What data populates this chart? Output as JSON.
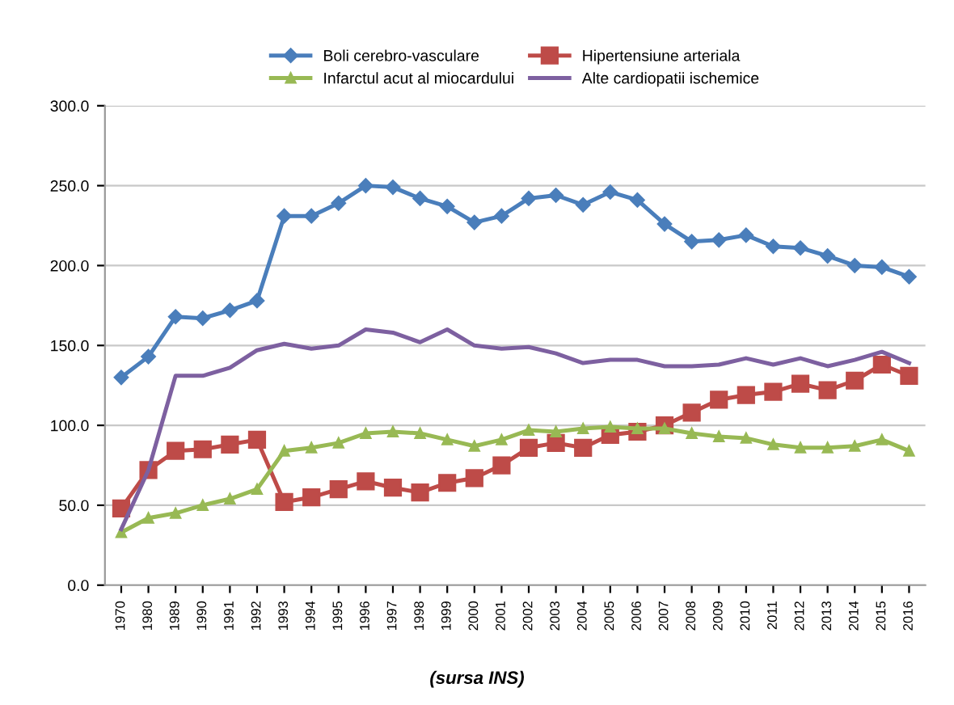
{
  "chart_data": {
    "type": "line",
    "categories": [
      "1970",
      "1980",
      "1989",
      "1990",
      "1991",
      "1992",
      "1993",
      "1994",
      "1995",
      "1996",
      "1997",
      "1998",
      "1999",
      "2000",
      "2001",
      "2002",
      "2003",
      "2004",
      "2005",
      "2006",
      "2007",
      "2008",
      "2009",
      "2010",
      "2011",
      "2012",
      "2013",
      "2014",
      "2015",
      "2016"
    ],
    "series": [
      {
        "name": "Boli cerebro-vasculare",
        "color": "#4a7ebb",
        "marker": "diamond",
        "values": [
          130,
          143,
          168,
          167,
          172,
          178,
          231,
          231,
          239,
          250,
          249,
          242,
          237,
          227,
          231,
          242,
          244,
          238,
          246,
          241,
          226,
          215,
          216,
          219,
          212,
          211,
          206,
          200,
          199,
          193
        ]
      },
      {
        "name": "Hipertensiune arteriala",
        "color": "#be4b48",
        "marker": "square",
        "values": [
          48,
          72,
          84,
          85,
          88,
          91,
          52,
          55,
          60,
          65,
          61,
          58,
          64,
          67,
          75,
          86,
          89,
          86,
          94,
          96,
          100,
          108,
          116,
          119,
          121,
          126,
          122,
          128,
          138,
          131
        ]
      },
      {
        "name": "Infarctul acut al miocardului",
        "color": "#98b954",
        "marker": "triangle",
        "values": [
          33,
          42,
          45,
          50,
          54,
          60,
          84,
          86,
          89,
          95,
          96,
          95,
          91,
          87,
          91,
          97,
          96,
          98,
          99,
          98,
          98,
          95,
          93,
          92,
          88,
          86,
          86,
          87,
          91,
          84
        ]
      },
      {
        "name": "Alte cardiopatii ischemice",
        "color": "#7d60a0",
        "marker": "none",
        "values": [
          35,
          72,
          131,
          131,
          136,
          147,
          151,
          148,
          150,
          160,
          158,
          152,
          160,
          150,
          148,
          149,
          145,
          139,
          141,
          141,
          137,
          137,
          138,
          142,
          138,
          142,
          137,
          141,
          146,
          139
        ]
      }
    ],
    "ylim": [
      0,
      300
    ],
    "yticks": [
      {
        "value": 0,
        "label": "0.0"
      },
      {
        "value": 50,
        "label": "50.0"
      },
      {
        "value": 100,
        "label": "100.0"
      },
      {
        "value": 150,
        "label": "150.0"
      },
      {
        "value": 200,
        "label": "200.0"
      },
      {
        "value": 250,
        "label": "250.0"
      },
      {
        "value": 300,
        "label": "300.0"
      }
    ],
    "grid": "y",
    "legend": "top",
    "annotations": [
      "(sursa INS)"
    ]
  }
}
